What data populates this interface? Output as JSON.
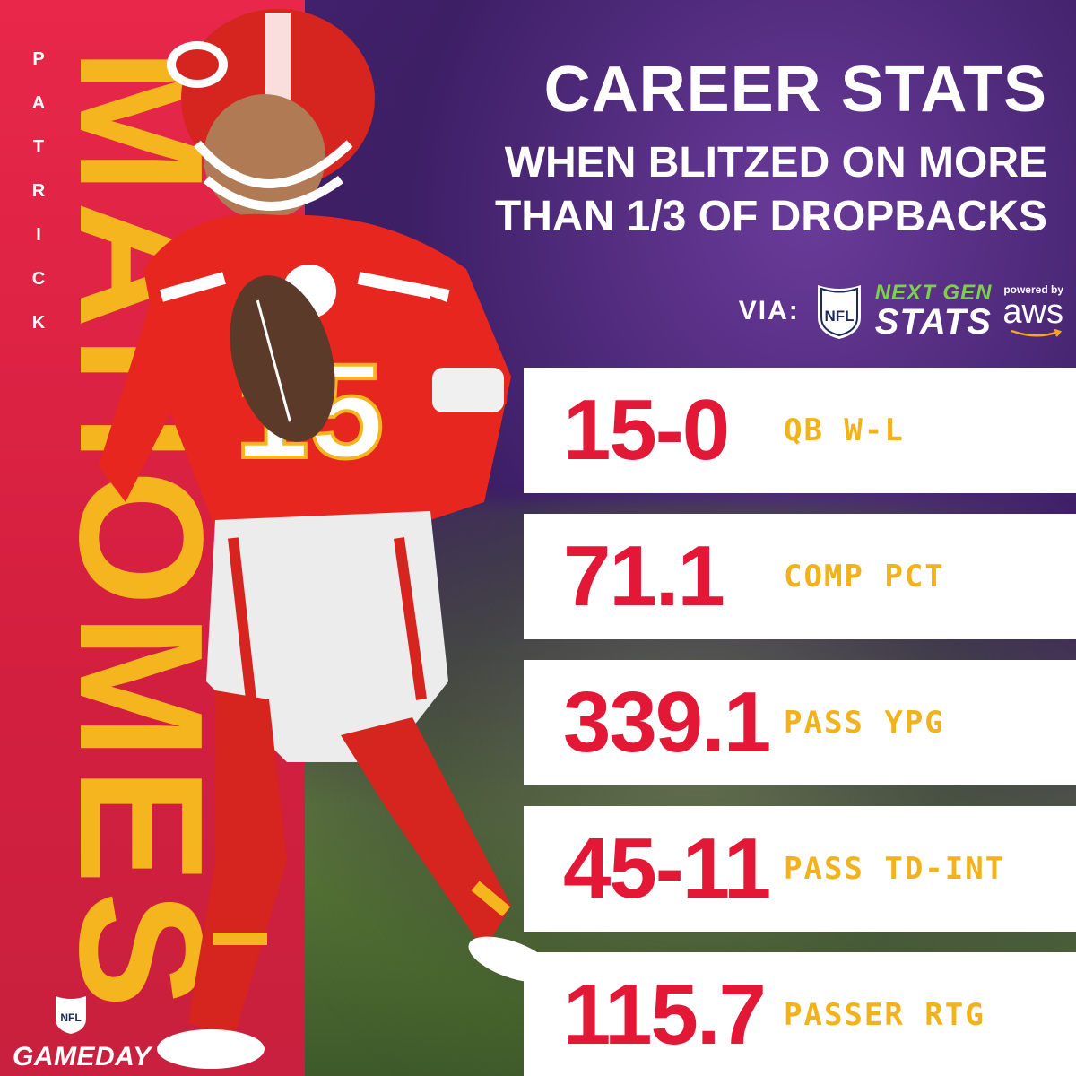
{
  "player": {
    "first_name_letters": [
      "P",
      "A",
      "T",
      "R",
      "I",
      "C",
      "K"
    ],
    "last_name": "MAHOMES",
    "jersey_number": "15"
  },
  "headline": {
    "title": "CAREER STATS",
    "subtitle_line1": "WHEN BLITZED ON MORE",
    "subtitle_line2": "THAN 1/3 OF DROPBACKS"
  },
  "source": {
    "via_label": "VIA:",
    "nfl_shield_text": "NFL",
    "ngs_top": "NEXT GEN",
    "ngs_bottom": "STATS",
    "aws_top": "powered by",
    "aws_bottom": "aws"
  },
  "stats": [
    {
      "value": "15-0",
      "label": "QB W-L"
    },
    {
      "value": "71.1",
      "label": "COMP PCT"
    },
    {
      "value": "339.1",
      "label": "PASS YPG"
    },
    {
      "value": "45-11",
      "label": "PASS TD-INT"
    },
    {
      "value": "115.7",
      "label": "PASSER RTG"
    }
  ],
  "brand": {
    "gameday_text": "GAMEDAY",
    "shield_text": "NFL"
  },
  "colors": {
    "chiefs_red": "#e31837",
    "chiefs_gold": "#f5b51e",
    "purple": "#3d1f66",
    "ngs_green": "#7bd24a"
  }
}
